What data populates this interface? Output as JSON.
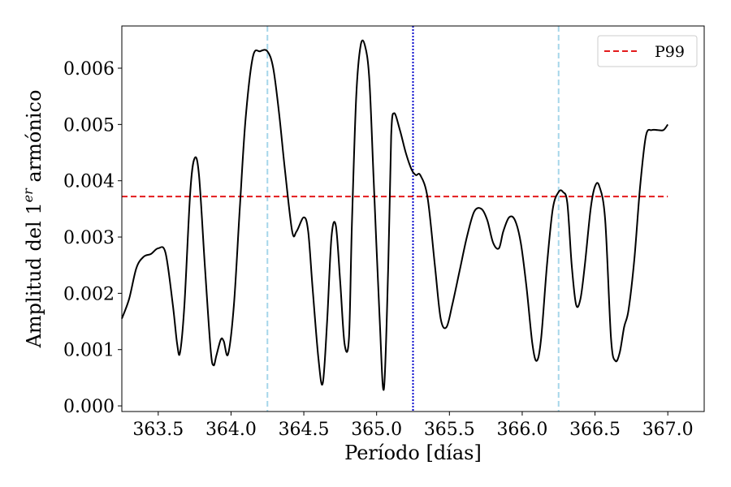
{
  "chart_data": {
    "type": "line",
    "xlabel": "Período [días]",
    "ylabel_prefix": "Amplitud del 1",
    "ylabel_sup": "er",
    "ylabel_suffix": " armónico",
    "xlim": [
      363.25,
      367.25
    ],
    "ylim": [
      -0.0001,
      0.00675
    ],
    "xticks": [
      363.5,
      364.0,
      364.5,
      365.0,
      365.5,
      366.0,
      366.5,
      367.0
    ],
    "xtick_labels": [
      "363.5",
      "364.0",
      "364.5",
      "365.0",
      "365.5",
      "366.0",
      "366.5",
      "367.0"
    ],
    "yticks": [
      0.0,
      0.001,
      0.002,
      0.003,
      0.004,
      0.005,
      0.006
    ],
    "ytick_labels": [
      "0.000",
      "0.001",
      "0.002",
      "0.003",
      "0.004",
      "0.005",
      "0.006"
    ],
    "grid": false,
    "legend_position": "top-right",
    "series": [
      {
        "color": "#000000",
        "style": "solid",
        "x": [
          363.25,
          363.3,
          363.35,
          363.4,
          363.45,
          363.5,
          363.55,
          363.6,
          363.63,
          363.65,
          363.68,
          363.72,
          363.75,
          363.78,
          363.82,
          363.86,
          363.88,
          363.9,
          363.93,
          363.95,
          363.98,
          364.02,
          364.06,
          364.1,
          364.15,
          364.2,
          364.25,
          364.29,
          364.33,
          364.37,
          364.42,
          364.45,
          364.5,
          364.53,
          364.56,
          364.6,
          364.63,
          364.66,
          364.69,
          364.72,
          364.75,
          364.78,
          364.81,
          364.83,
          364.86,
          364.89,
          364.92,
          364.95,
          364.98,
          365.02,
          365.05,
          365.08,
          365.1,
          365.12,
          365.16,
          365.2,
          365.24,
          365.27,
          365.3,
          365.35,
          365.4,
          365.44,
          365.48,
          365.52,
          365.57,
          365.62,
          365.67,
          365.72,
          365.76,
          365.8,
          365.84,
          365.87,
          365.91,
          365.95,
          365.99,
          366.03,
          366.07,
          366.1,
          366.13,
          366.17,
          366.21,
          366.25,
          366.28,
          366.31,
          366.34,
          366.37,
          366.4,
          366.43,
          366.47,
          366.5,
          366.53,
          366.57,
          366.61,
          366.64,
          366.67,
          366.7,
          366.73,
          366.77,
          366.81,
          366.85,
          366.89,
          366.93,
          366.97,
          367.0
        ],
        "y": [
          0.00155,
          0.0019,
          0.00245,
          0.00265,
          0.0027,
          0.0028,
          0.00272,
          0.0018,
          0.0011,
          0.00095,
          0.0018,
          0.0038,
          0.0044,
          0.0041,
          0.0025,
          0.001,
          0.00072,
          0.0009,
          0.00118,
          0.00115,
          0.00092,
          0.0018,
          0.0035,
          0.0051,
          0.0062,
          0.0063,
          0.0063,
          0.006,
          0.0052,
          0.0042,
          0.0031,
          0.0031,
          0.00335,
          0.0031,
          0.0021,
          0.00085,
          0.0004,
          0.0015,
          0.003,
          0.0032,
          0.0022,
          0.0011,
          0.0012,
          0.0032,
          0.0055,
          0.0064,
          0.0064,
          0.0058,
          0.004,
          0.0016,
          0.0003,
          0.0025,
          0.0048,
          0.0052,
          0.0049,
          0.0045,
          0.0042,
          0.0041,
          0.0041,
          0.0037,
          0.0025,
          0.00155,
          0.0014,
          0.0018,
          0.0024,
          0.003,
          0.00345,
          0.0035,
          0.0033,
          0.0029,
          0.0028,
          0.0031,
          0.00335,
          0.0033,
          0.0029,
          0.0021,
          0.0011,
          0.0008,
          0.0012,
          0.0025,
          0.0035,
          0.0038,
          0.0038,
          0.0036,
          0.0025,
          0.0018,
          0.0019,
          0.0025,
          0.0035,
          0.0039,
          0.0039,
          0.0033,
          0.0012,
          0.0008,
          0.00095,
          0.0014,
          0.0017,
          0.0026,
          0.0039,
          0.0048,
          0.0049,
          0.0049,
          0.0049,
          0.005
        ]
      }
    ],
    "hlines": [
      {
        "name": "P99",
        "y": 0.00372,
        "color": "#e31a1c",
        "style": "dashed"
      }
    ],
    "vlines": [
      {
        "x": 364.25,
        "color": "#a6d6ea",
        "style": "dashed"
      },
      {
        "x": 365.25,
        "color": "#0000cc",
        "style": "dotted"
      },
      {
        "x": 366.25,
        "color": "#a6d6ea",
        "style": "dashed"
      }
    ]
  }
}
